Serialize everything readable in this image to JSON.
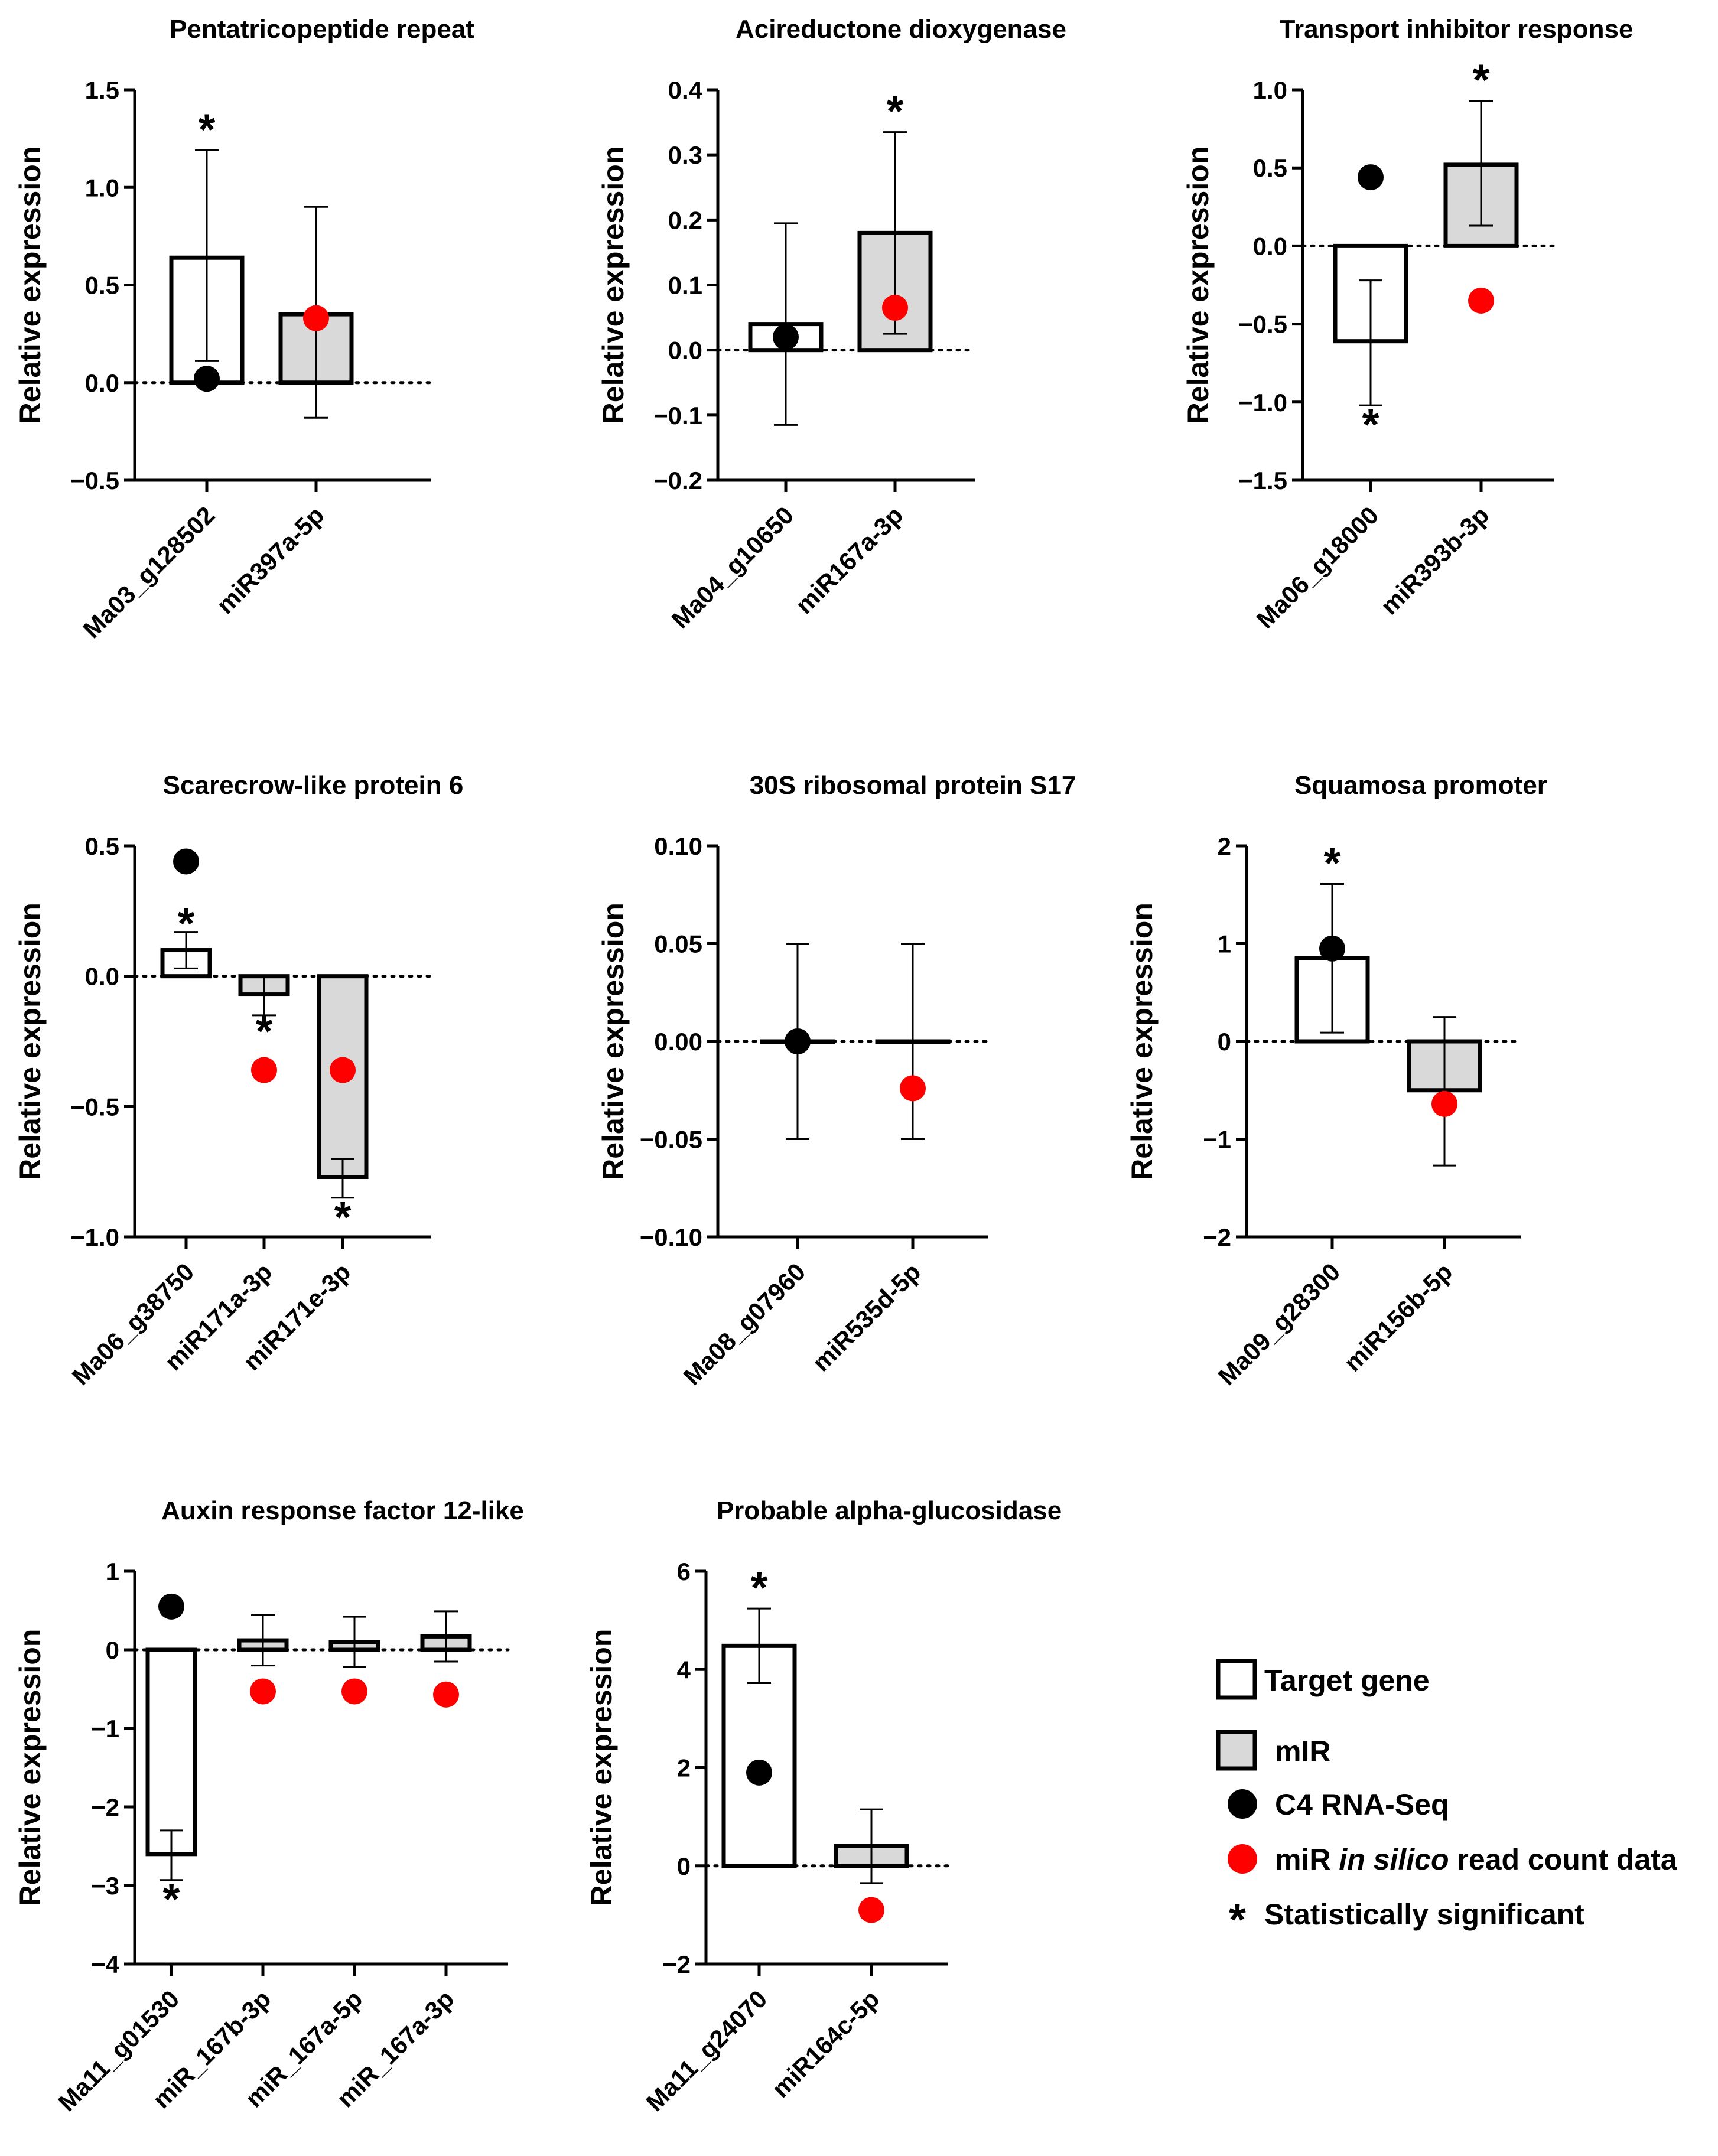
{
  "legend": {
    "target_gene": "Target gene",
    "mir": "mIR",
    "c4": "C4 RNA-Seq",
    "mir_insilico_pre": "miR ",
    "mir_insilico_italic": "in silico",
    "mir_insilico_post": " read count data",
    "sig_symbol": "*",
    "sig": "Statistically significant"
  },
  "colors": {
    "target_fill": "#ffffff",
    "mir_fill": "#d9d9d9",
    "c4_dot": "#000000",
    "insilico_dot": "#ff0000"
  },
  "ylabel": "Relative expression",
  "chart_data": [
    {
      "type": "bar",
      "title": "Pentatricopeptide repeat",
      "ylabel": "Relative expression",
      "ylim": [
        -0.5,
        1.5
      ],
      "yticks": [
        -0.5,
        0.0,
        0.5,
        1.0,
        1.5
      ],
      "tick_labels": [
        "−0.5",
        "0.0",
        "0.5",
        "1.0",
        "1.5"
      ],
      "categories": [
        "Ma03_g128502",
        "miR397a-5p"
      ],
      "kinds": [
        "gene",
        "mir"
      ],
      "values": [
        0.64,
        0.35
      ],
      "err_low": [
        0.11,
        -0.18
      ],
      "err_high": [
        1.19,
        0.9
      ],
      "dots": [
        0.02,
        0.33
      ],
      "sig": [
        true,
        false
      ]
    },
    {
      "type": "bar",
      "title": "Acireductone dioxygenase",
      "ylabel": "Relative expression",
      "ylim": [
        -0.2,
        0.4
      ],
      "yticks": [
        -0.2,
        -0.1,
        0.0,
        0.1,
        0.2,
        0.3,
        0.4
      ],
      "tick_labels": [
        "−0.2",
        "−0.1",
        "0.0",
        "0.1",
        "0.2",
        "0.3",
        "0.4"
      ],
      "categories": [
        "Ma04_g10650",
        "miR167a-3p"
      ],
      "kinds": [
        "gene",
        "mir"
      ],
      "values": [
        0.04,
        0.18
      ],
      "err_low": [
        -0.115,
        0.025
      ],
      "err_high": [
        0.195,
        0.335
      ],
      "dots": [
        0.02,
        0.065
      ],
      "sig": [
        false,
        true
      ]
    },
    {
      "type": "bar",
      "title": "Transport inhibitor response",
      "ylabel": "Relative expression",
      "ylim": [
        -1.5,
        1.0
      ],
      "yticks": [
        -1.5,
        -1.0,
        -0.5,
        0.0,
        0.5,
        1.0
      ],
      "tick_labels": [
        "−1.5",
        "−1.0",
        "−0.5",
        "0.0",
        "0.5",
        "1.0"
      ],
      "categories": [
        "Ma06_g18000",
        "miR393b-3p"
      ],
      "kinds": [
        "gene",
        "mir"
      ],
      "values": [
        -0.61,
        0.52
      ],
      "err_low": [
        -1.02,
        0.13
      ],
      "err_high": [
        -0.22,
        0.93
      ],
      "dots": [
        0.44,
        -0.35
      ],
      "sig": [
        true,
        true
      ]
    },
    {
      "type": "bar",
      "title": "Scarecrow-like protein 6",
      "ylabel": "Relative expression",
      "ylim": [
        -1.0,
        0.5
      ],
      "yticks": [
        -1.0,
        -0.5,
        0.0,
        0.5
      ],
      "tick_labels": [
        "−1.0",
        "−0.5",
        "0.0",
        "0.5"
      ],
      "categories": [
        "Ma06_g38750",
        "miR171a-3p",
        "miR171e-3p"
      ],
      "kinds": [
        "gene",
        "mir",
        "mir"
      ],
      "values": [
        0.1,
        -0.07,
        -0.77
      ],
      "err_low": [
        0.03,
        -0.15,
        -0.85
      ],
      "err_high": [
        0.17,
        0.0,
        -0.7
      ],
      "dots": [
        0.44,
        -0.36,
        -0.36
      ],
      "sig": [
        true,
        true,
        true
      ]
    },
    {
      "type": "bar",
      "title": "30S ribosomal protein S17",
      "ylabel": "Relative expression",
      "ylim": [
        -0.1,
        0.1
      ],
      "yticks": [
        -0.1,
        -0.05,
        0.0,
        0.05,
        0.1
      ],
      "tick_labels": [
        "−0.10",
        "−0.05",
        "0.00",
        "0.05",
        "0.10"
      ],
      "categories": [
        "Ma08_g07960",
        "miR535d-5p"
      ],
      "kinds": [
        "gene",
        "mir"
      ],
      "values": [
        0.0,
        0.0
      ],
      "err_low": [
        -0.05,
        -0.05
      ],
      "err_high": [
        0.05,
        0.05
      ],
      "dots": [
        0.0,
        -0.024
      ],
      "sig": [
        false,
        false
      ]
    },
    {
      "type": "bar",
      "title": "Squamosa promoter",
      "ylabel": "Relative expression",
      "ylim": [
        -2,
        2
      ],
      "yticks": [
        -2,
        -1,
        0,
        1,
        2
      ],
      "tick_labels": [
        "−2",
        "−1",
        "0",
        "1",
        "2"
      ],
      "categories": [
        "Ma09_g28300",
        "miR156b-5p"
      ],
      "kinds": [
        "gene",
        "mir"
      ],
      "values": [
        0.85,
        -0.5
      ],
      "err_low": [
        0.09,
        -1.27
      ],
      "err_high": [
        1.61,
        0.25
      ],
      "dots": [
        0.95,
        -0.64
      ],
      "sig": [
        true,
        false
      ]
    },
    {
      "type": "bar",
      "title": "Auxin response factor 12-like",
      "ylabel": "Relative expression",
      "ylim": [
        -4,
        1
      ],
      "yticks": [
        -4,
        -3,
        -2,
        -1,
        0,
        1
      ],
      "tick_labels": [
        "−4",
        "−3",
        "−2",
        "−1",
        "0",
        "1"
      ],
      "categories": [
        "Ma11_g01530",
        "miR_167b-3p",
        "miR_167a-5p",
        "miR_167a-3p"
      ],
      "kinds": [
        "gene",
        "mir",
        "mir",
        "mir"
      ],
      "values": [
        -2.6,
        0.12,
        0.1,
        0.17
      ],
      "err_low": [
        -2.93,
        -0.2,
        -0.22,
        -0.15
      ],
      "err_high": [
        -2.3,
        0.44,
        0.42,
        0.49
      ],
      "dots": [
        0.55,
        -0.53,
        -0.53,
        -0.57
      ],
      "sig": [
        true,
        false,
        false,
        false
      ]
    },
    {
      "type": "bar",
      "title": "Probable alpha-glucosidase",
      "ylabel": "Relative expression",
      "ylim": [
        -2,
        6
      ],
      "yticks": [
        -2,
        0,
        2,
        4,
        6
      ],
      "tick_labels": [
        "−2",
        "0",
        "2",
        "4",
        "6"
      ],
      "categories": [
        "Ma11_g24070",
        "miR164c-5p"
      ],
      "kinds": [
        "gene",
        "mir"
      ],
      "values": [
        4.48,
        0.4
      ],
      "err_low": [
        3.72,
        -0.35
      ],
      "err_high": [
        5.24,
        1.15
      ],
      "dots": [
        1.9,
        -0.9
      ],
      "sig": [
        true,
        false
      ]
    }
  ]
}
